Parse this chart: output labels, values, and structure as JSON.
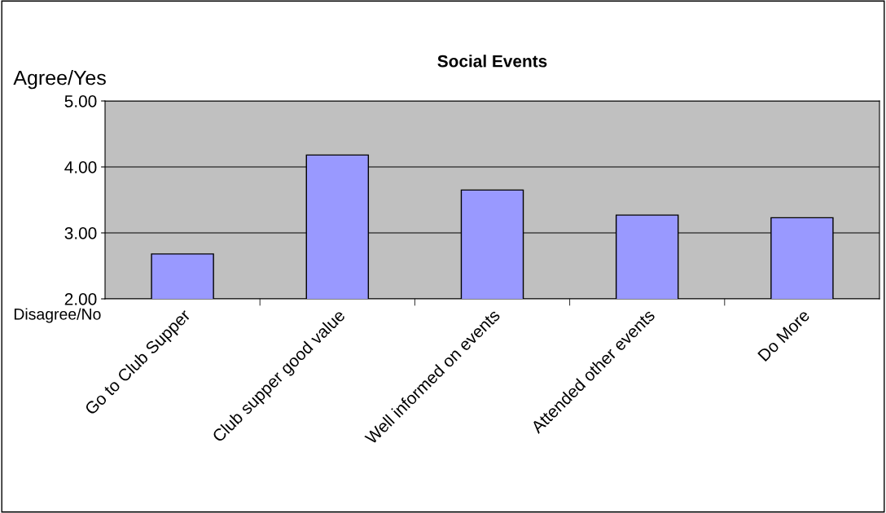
{
  "chart_data": {
    "type": "bar",
    "title": "Social Events",
    "categories": [
      "Go to Club Supper",
      "Club supper good value",
      "Well informed on events",
      "Attended other events",
      "Do More"
    ],
    "values": [
      2.68,
      4.18,
      3.65,
      3.27,
      3.23
    ],
    "color": "#9999ff",
    "ylim": [
      2,
      5
    ],
    "yticks": [
      {
        "value": 2,
        "label": "2.00"
      },
      {
        "value": 3,
        "label": "3.00"
      },
      {
        "value": 4,
        "label": "4.00"
      },
      {
        "value": 5,
        "label": "5.00"
      }
    ],
    "grid": "y",
    "annotations": [
      "Agree/Yes",
      "Disagree/No"
    ]
  }
}
